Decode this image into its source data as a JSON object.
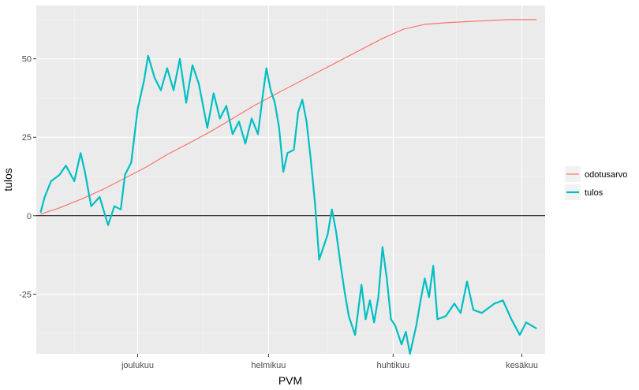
{
  "chart_data": {
    "type": "line",
    "xlabel": "PVM",
    "ylabel": "tulos",
    "x_ticks": [
      "joulukuu",
      "helmikuu",
      "huhtikuu",
      "kesäkuu"
    ],
    "y_ticks": [
      -25,
      0,
      25,
      50
    ],
    "ylim": [
      -44,
      67
    ],
    "reference_line": {
      "y": 0,
      "color": "#000000"
    },
    "x_range": [
      "2016-10-14",
      "2017-06-12"
    ],
    "grid": true,
    "legend_position": "right",
    "panel_background": "#ebebeb",
    "series": [
      {
        "name": "odotusarvo",
        "color": "#f8766d",
        "points": [
          [
            "2016-10-16",
            0.5
          ],
          [
            "2016-10-25",
            2.5
          ],
          [
            "2016-11-05",
            5.5
          ],
          [
            "2016-11-15",
            8.5
          ],
          [
            "2016-11-25",
            12
          ],
          [
            "2016-12-05",
            15.5
          ],
          [
            "2016-12-15",
            19.5
          ],
          [
            "2016-12-25",
            23
          ],
          [
            "2017-01-05",
            27
          ],
          [
            "2017-01-15",
            31
          ],
          [
            "2017-01-25",
            35
          ],
          [
            "2017-02-05",
            39
          ],
          [
            "2017-02-15",
            42.5
          ],
          [
            "2017-02-25",
            46
          ],
          [
            "2017-03-07",
            49.5
          ],
          [
            "2017-03-17",
            53
          ],
          [
            "2017-03-27",
            56.5
          ],
          [
            "2017-04-06",
            59.5
          ],
          [
            "2017-04-16",
            61
          ],
          [
            "2017-04-26",
            61.5
          ],
          [
            "2017-05-10",
            62
          ],
          [
            "2017-05-25",
            62.5
          ],
          [
            "2017-06-08",
            62.5
          ]
        ]
      },
      {
        "name": "tulos",
        "color": "#00bfc4",
        "points": [
          [
            "2016-10-16",
            1
          ],
          [
            "2016-10-18",
            6
          ],
          [
            "2016-10-21",
            11
          ],
          [
            "2016-10-25",
            13
          ],
          [
            "2016-10-28",
            16
          ],
          [
            "2016-11-01",
            11
          ],
          [
            "2016-11-04",
            20
          ],
          [
            "2016-11-06",
            14
          ],
          [
            "2016-11-09",
            3
          ],
          [
            "2016-11-13",
            6
          ],
          [
            "2016-11-17",
            -3
          ],
          [
            "2016-11-20",
            3
          ],
          [
            "2016-11-23",
            2
          ],
          [
            "2016-11-25",
            13
          ],
          [
            "2016-11-28",
            17
          ],
          [
            "2016-12-01",
            34
          ],
          [
            "2016-12-04",
            43
          ],
          [
            "2016-12-06",
            51
          ],
          [
            "2016-12-09",
            44
          ],
          [
            "2016-12-12",
            40
          ],
          [
            "2016-12-15",
            47
          ],
          [
            "2016-12-18",
            40
          ],
          [
            "2016-12-21",
            50
          ],
          [
            "2016-12-24",
            36
          ],
          [
            "2016-12-27",
            48
          ],
          [
            "2016-12-30",
            42
          ],
          [
            "2017-01-03",
            28
          ],
          [
            "2017-01-06",
            39
          ],
          [
            "2017-01-09",
            31
          ],
          [
            "2017-01-12",
            35
          ],
          [
            "2017-01-15",
            26
          ],
          [
            "2017-01-18",
            30
          ],
          [
            "2017-01-21",
            23
          ],
          [
            "2017-01-24",
            31
          ],
          [
            "2017-01-27",
            26
          ],
          [
            "2017-01-29",
            37
          ],
          [
            "2017-01-31",
            47
          ],
          [
            "2017-02-02",
            40
          ],
          [
            "2017-02-04",
            36
          ],
          [
            "2017-02-06",
            28
          ],
          [
            "2017-02-08",
            14
          ],
          [
            "2017-02-10",
            20
          ],
          [
            "2017-02-13",
            21
          ],
          [
            "2017-02-15",
            33
          ],
          [
            "2017-02-17",
            37
          ],
          [
            "2017-02-19",
            30
          ],
          [
            "2017-02-21",
            18
          ],
          [
            "2017-02-23",
            4
          ],
          [
            "2017-02-25",
            -14
          ],
          [
            "2017-02-27",
            -10
          ],
          [
            "2017-03-01",
            -6
          ],
          [
            "2017-03-03",
            2
          ],
          [
            "2017-03-05",
            -5
          ],
          [
            "2017-03-07",
            -15
          ],
          [
            "2017-03-09",
            -24
          ],
          [
            "2017-03-11",
            -32
          ],
          [
            "2017-03-14",
            -38
          ],
          [
            "2017-03-17",
            -22
          ],
          [
            "2017-03-19",
            -33
          ],
          [
            "2017-03-21",
            -27
          ],
          [
            "2017-03-23",
            -34
          ],
          [
            "2017-03-25",
            -26
          ],
          [
            "2017-03-27",
            -10
          ],
          [
            "2017-03-29",
            -20
          ],
          [
            "2017-03-31",
            -33
          ],
          [
            "2017-04-02",
            -35
          ],
          [
            "2017-04-05",
            -41
          ],
          [
            "2017-04-07",
            -37
          ],
          [
            "2017-04-09",
            -44
          ],
          [
            "2017-04-12",
            -35
          ],
          [
            "2017-04-14",
            -27
          ],
          [
            "2017-04-16",
            -20
          ],
          [
            "2017-04-18",
            -26
          ],
          [
            "2017-04-20",
            -16
          ],
          [
            "2017-04-22",
            -33
          ],
          [
            "2017-04-26",
            -32
          ],
          [
            "2017-04-30",
            -28
          ],
          [
            "2017-05-03",
            -31
          ],
          [
            "2017-05-06",
            -21
          ],
          [
            "2017-05-09",
            -30
          ],
          [
            "2017-05-13",
            -31
          ],
          [
            "2017-05-19",
            -28
          ],
          [
            "2017-05-23",
            -27
          ],
          [
            "2017-05-27",
            -33
          ],
          [
            "2017-05-31",
            -38
          ],
          [
            "2017-06-03",
            -34
          ],
          [
            "2017-06-08",
            -36
          ]
        ]
      }
    ]
  }
}
